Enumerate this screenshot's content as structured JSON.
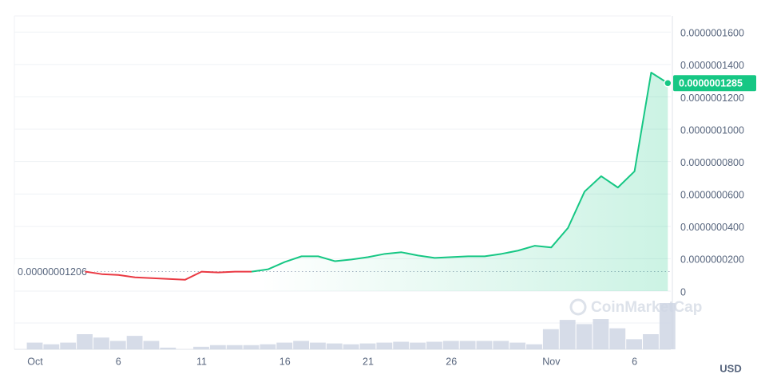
{
  "chart_data": {
    "type": "line",
    "x": [
      "Oct 1",
      "Oct 2",
      "Oct 3",
      "Oct 4",
      "Oct 5",
      "Oct 6",
      "Oct 7",
      "Oct 8",
      "Oct 9",
      "Oct 10",
      "Oct 11",
      "Oct 12",
      "Oct 13",
      "Oct 14",
      "Oct 15",
      "Oct 16",
      "Oct 17",
      "Oct 18",
      "Oct 19",
      "Oct 20",
      "Oct 21",
      "Oct 22",
      "Oct 23",
      "Oct 24",
      "Oct 25",
      "Oct 26",
      "Oct 27",
      "Oct 28",
      "Oct 29",
      "Oct 30",
      "Oct 31",
      "Nov 1",
      "Nov 2",
      "Nov 3",
      "Nov 4",
      "Nov 5",
      "Nov 6",
      "Nov 7",
      "Nov 8"
    ],
    "series": [
      {
        "name": "Price",
        "values": [
          null,
          null,
          null,
          1.206e-08,
          1.05e-08,
          1e-08,
          8.5e-09,
          8e-09,
          7.5e-09,
          7e-09,
          1.2e-08,
          1.15e-08,
          1.2e-08,
          1.2e-08,
          1.35e-08,
          1.8e-08,
          2.15e-08,
          2.15e-08,
          1.85e-08,
          1.95e-08,
          2.1e-08,
          2.3e-08,
          2.4e-08,
          2.2e-08,
          2.05e-08,
          2.1e-08,
          2.15e-08,
          2.15e-08,
          2.3e-08,
          2.5e-08,
          2.8e-08,
          2.7e-08,
          3.9e-08,
          6.15e-08,
          7.1e-08,
          6.4e-08,
          7.4e-08,
          1.35e-07,
          1.285e-07
        ]
      },
      {
        "name": "Volume",
        "values": [
          8,
          6,
          8,
          18,
          14,
          10,
          16,
          10,
          2,
          0,
          3,
          5,
          5,
          5,
          6,
          8,
          10,
          8,
          7,
          6,
          7,
          8,
          9,
          8,
          9,
          10,
          10,
          10,
          10,
          8,
          6,
          24,
          35,
          30,
          36,
          25,
          12,
          18,
          55
        ]
      }
    ],
    "up_color": "#16c784",
    "down_color": "#ea3943",
    "volume_color": "#cfd6e4",
    "reference": {
      "value": 1.206e-08,
      "label": "0.00000001206"
    },
    "current": {
      "value": 1.285e-07,
      "label": "0.0000001285"
    },
    "ylim": [
      0,
      1.7e-07
    ],
    "yticks": [
      0,
      {
        "value": 2e-08,
        "label": "0.0000000200"
      },
      {
        "value": 4e-08,
        "label": "0.0000000400"
      },
      {
        "value": 6e-08,
        "label": "0.0000000600"
      },
      {
        "value": 8e-08,
        "label": "0.0000000800"
      },
      {
        "value": 1e-07,
        "label": "0.0000001000"
      },
      {
        "value": 1.2e-07,
        "label": "0.0000001200"
      },
      {
        "value": 1.4e-07,
        "label": "0.0000001400"
      },
      {
        "value": 1.6e-07,
        "label": "0.0000001600"
      }
    ],
    "xticks": [
      {
        "value": "Oct 1",
        "label": "Oct"
      },
      {
        "value": "Oct 6",
        "label": "6"
      },
      {
        "value": "Oct 11",
        "label": "11"
      },
      {
        "value": "Oct 16",
        "label": "16"
      },
      {
        "value": "Oct 21",
        "label": "21"
      },
      {
        "value": "Oct 26",
        "label": "26"
      },
      {
        "value": "Nov 1",
        "label": "Nov"
      },
      {
        "value": "Nov 6",
        "label": "6"
      }
    ],
    "grid": true,
    "currency": "USD",
    "watermark": "CoinMarketCap"
  }
}
